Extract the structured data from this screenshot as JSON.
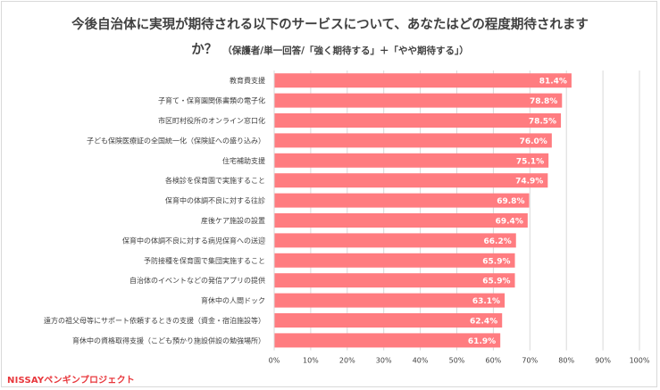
{
  "title": {
    "line1": "今後自治体に実現が期待される以下のサービスについて、あなたはどの程度期待されます",
    "line2_main": "か？",
    "line2_sub": "（保護者/単一回答/「強く期待する」＋「やや期待する」）"
  },
  "logo_text": "NISSAYペンギンプロジェクト",
  "colors": {
    "bar": "#ff7c80",
    "label": "#ffffff",
    "grid": "#d9d9d9",
    "text": "#404040",
    "logo": "#e8373c"
  },
  "chart_data": {
    "type": "bar",
    "orientation": "horizontal",
    "categories": [
      "教育費支援",
      "子育て・保育園関係書類の電子化",
      "市区町村役所のオンライン窓口化",
      "子ども保険医療証の全国統一化（保険証への盛り込み）",
      "住宅補助支援",
      "各検診を保育園で実施すること",
      "保育中の体調不良に対する往診",
      "産後ケア施設の設置",
      "保育中の体調不良に対する病児保育への送迎",
      "予防接種を保育園で集団実施すること",
      "自治体のイベントなどの発信アプリの提供",
      "育休中の人間ドック",
      "遠方の祖父母等にサポート依頼するときの支援（資金・宿泊施設等）",
      "育休中の資格取得支援（こども預かり施設併設の勉強場所）"
    ],
    "values": [
      81.4,
      78.8,
      78.5,
      76.0,
      75.1,
      74.9,
      69.8,
      69.4,
      66.2,
      65.9,
      65.9,
      63.1,
      62.4,
      61.9
    ],
    "value_labels": [
      "81.4%",
      "78.8%",
      "78.5%",
      "76.0%",
      "75.1%",
      "74.9%",
      "69.8%",
      "69.4%",
      "66.2%",
      "65.9%",
      "65.9%",
      "63.1%",
      "62.4%",
      "61.9%"
    ],
    "xlim": [
      0,
      100
    ],
    "xticks": [
      "0%",
      "10%",
      "20%",
      "30%",
      "40%",
      "50%",
      "60%",
      "70%",
      "80%",
      "90%",
      "100%"
    ],
    "grid": true
  }
}
